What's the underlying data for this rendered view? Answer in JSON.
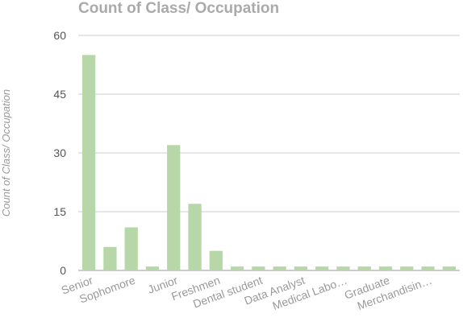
{
  "chart_data": {
    "type": "bar",
    "title": "Count of Class/ Occupation",
    "xlabel": "",
    "ylabel": "Count of Class/ Occupation",
    "categories": [
      "Senior",
      "",
      "Sophomore",
      "",
      "Junior",
      "",
      "Freshmen",
      "",
      "Dental student",
      "",
      "Data Analyst",
      "",
      "Medical Labo…",
      "",
      "Graduate",
      "",
      "Merchandisin…",
      ""
    ],
    "values": [
      55,
      6,
      11,
      1,
      32,
      17,
      5,
      1,
      1,
      1,
      1,
      1,
      1,
      1,
      1,
      1,
      1,
      1
    ],
    "ylim": [
      0,
      60
    ],
    "yticks": [
      0,
      15,
      30,
      45,
      60
    ],
    "grid": true,
    "legend": "none",
    "colors": {
      "bar": "#b7d7a8",
      "title": "#aaaaaa",
      "grid": "#cccccc"
    }
  }
}
